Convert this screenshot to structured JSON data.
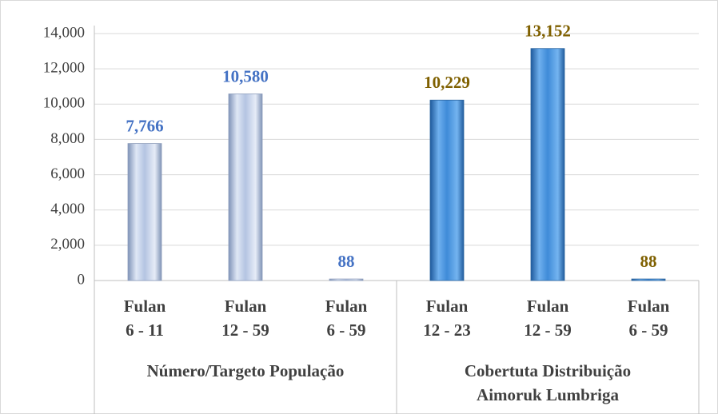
{
  "chart_data": {
    "type": "bar",
    "ylim": [
      0,
      14000
    ],
    "yticks": [
      0,
      {
        "value": 2000,
        "label": "2,000"
      },
      {
        "value": 4000,
        "label": "4,000"
      },
      {
        "value": 6000,
        "label": "6,000"
      },
      {
        "value": 8000,
        "label": "8,000"
      },
      {
        "value": 10000,
        "label": "10,000"
      },
      {
        "value": 12000,
        "label": "12,000"
      },
      {
        "value": 14000,
        "label": "14,000"
      }
    ],
    "grid": true,
    "groups": [
      {
        "name": [
          "Número/Targeto População"
        ],
        "color": "#b4c4e2",
        "label_color": "#4472c4",
        "categories": [
          [
            "Fulan",
            "6 - 11"
          ],
          [
            "Fulan",
            "12 - 59"
          ],
          [
            "Fulan",
            "6 - 59"
          ]
        ],
        "values": [
          7766,
          10580,
          88
        ],
        "value_labels": [
          "7,766",
          "10,580",
          "88"
        ]
      },
      {
        "name": [
          "Cobertuta Distribuição",
          "Aimoruk Lumbriga"
        ],
        "color": "#3f8bd8",
        "label_color": "#7f6000",
        "categories": [
          [
            "Fulan",
            "12 - 23"
          ],
          [
            "Fulan",
            "12 - 59"
          ],
          [
            "Fulan",
            "6 - 59"
          ]
        ],
        "values": [
          10229,
          13152,
          88
        ],
        "value_labels": [
          "10,229",
          "13,152",
          "88"
        ]
      }
    ]
  }
}
